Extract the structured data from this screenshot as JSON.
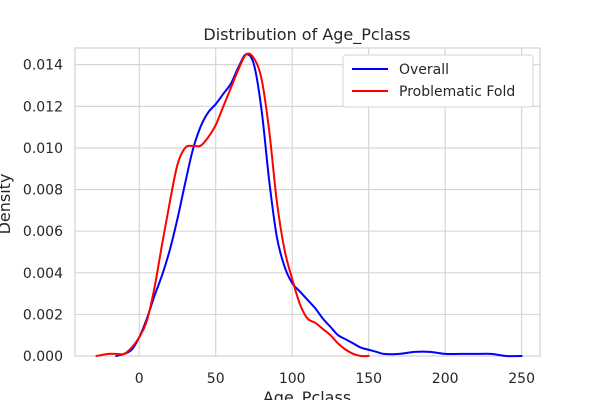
{
  "chart_data": {
    "type": "line",
    "title": "Distribution of Age_Pclass",
    "xlabel": "Age_Pclass",
    "ylabel": "Density",
    "xlim": [
      -42,
      262
    ],
    "ylim": [
      0,
      0.0148
    ],
    "x_ticks": [
      0,
      50,
      100,
      150,
      200,
      250
    ],
    "y_ticks": [
      0.0,
      0.002,
      0.004,
      0.006,
      0.008,
      0.01,
      0.012,
      0.014
    ],
    "x_tick_labels": [
      "0",
      "50",
      "100",
      "150",
      "200",
      "250"
    ],
    "y_tick_labels": [
      "0.000",
      "0.002",
      "0.004",
      "0.006",
      "0.008",
      "0.010",
      "0.012",
      "0.014"
    ],
    "grid": true,
    "legend_position": "top-right",
    "series": [
      {
        "name": "Overall",
        "color": "#0000ff",
        "points": [
          [
            -15,
            0.0
          ],
          [
            -10,
            0.0001
          ],
          [
            -5,
            0.0003
          ],
          [
            0,
            0.0009
          ],
          [
            5,
            0.0018
          ],
          [
            10,
            0.0029
          ],
          [
            15,
            0.0039
          ],
          [
            20,
            0.0051
          ],
          [
            25,
            0.0066
          ],
          [
            30,
            0.0083
          ],
          [
            35,
            0.0099
          ],
          [
            40,
            0.011
          ],
          [
            45,
            0.0117
          ],
          [
            50,
            0.0121
          ],
          [
            55,
            0.0126
          ],
          [
            60,
            0.0131
          ],
          [
            65,
            0.0139
          ],
          [
            70,
            0.0145
          ],
          [
            75,
            0.014
          ],
          [
            80,
            0.0118
          ],
          [
            85,
            0.0084
          ],
          [
            90,
            0.0057
          ],
          [
            95,
            0.0043
          ],
          [
            100,
            0.0035
          ],
          [
            105,
            0.0031
          ],
          [
            110,
            0.0027
          ],
          [
            115,
            0.0023
          ],
          [
            120,
            0.0018
          ],
          [
            125,
            0.0014
          ],
          [
            130,
            0.001
          ],
          [
            135,
            0.0008
          ],
          [
            140,
            0.0006
          ],
          [
            145,
            0.0004
          ],
          [
            150,
            0.0003
          ],
          [
            155,
            0.0002
          ],
          [
            160,
            0.0001
          ],
          [
            170,
            0.0001
          ],
          [
            180,
            0.0002
          ],
          [
            190,
            0.0002
          ],
          [
            200,
            0.0001
          ],
          [
            210,
            0.0001
          ],
          [
            220,
            0.0001
          ],
          [
            230,
            0.0001
          ],
          [
            240,
            0.0
          ],
          [
            250,
            0.0
          ]
        ]
      },
      {
        "name": "Problematic Fold",
        "color": "#ff0000",
        "points": [
          [
            -28,
            0.0
          ],
          [
            -20,
            0.0001
          ],
          [
            -15,
            0.0001
          ],
          [
            -10,
            0.0001
          ],
          [
            -5,
            0.0004
          ],
          [
            0,
            0.0009
          ],
          [
            5,
            0.0017
          ],
          [
            10,
            0.0033
          ],
          [
            15,
            0.0054
          ],
          [
            20,
            0.0074
          ],
          [
            25,
            0.0092
          ],
          [
            30,
            0.01
          ],
          [
            35,
            0.0101
          ],
          [
            40,
            0.0101
          ],
          [
            45,
            0.0105
          ],
          [
            50,
            0.0111
          ],
          [
            55,
            0.012
          ],
          [
            60,
            0.0129
          ],
          [
            65,
            0.0138
          ],
          [
            70,
            0.0145
          ],
          [
            75,
            0.0143
          ],
          [
            80,
            0.0133
          ],
          [
            85,
            0.0108
          ],
          [
            90,
            0.0074
          ],
          [
            95,
            0.0051
          ],
          [
            100,
            0.0037
          ],
          [
            105,
            0.0025
          ],
          [
            110,
            0.0018
          ],
          [
            115,
            0.0016
          ],
          [
            120,
            0.0013
          ],
          [
            125,
            0.001
          ],
          [
            130,
            0.0006
          ],
          [
            135,
            0.0003
          ],
          [
            140,
            0.0001
          ],
          [
            145,
            0.0
          ],
          [
            150,
            0.0
          ]
        ]
      }
    ]
  }
}
